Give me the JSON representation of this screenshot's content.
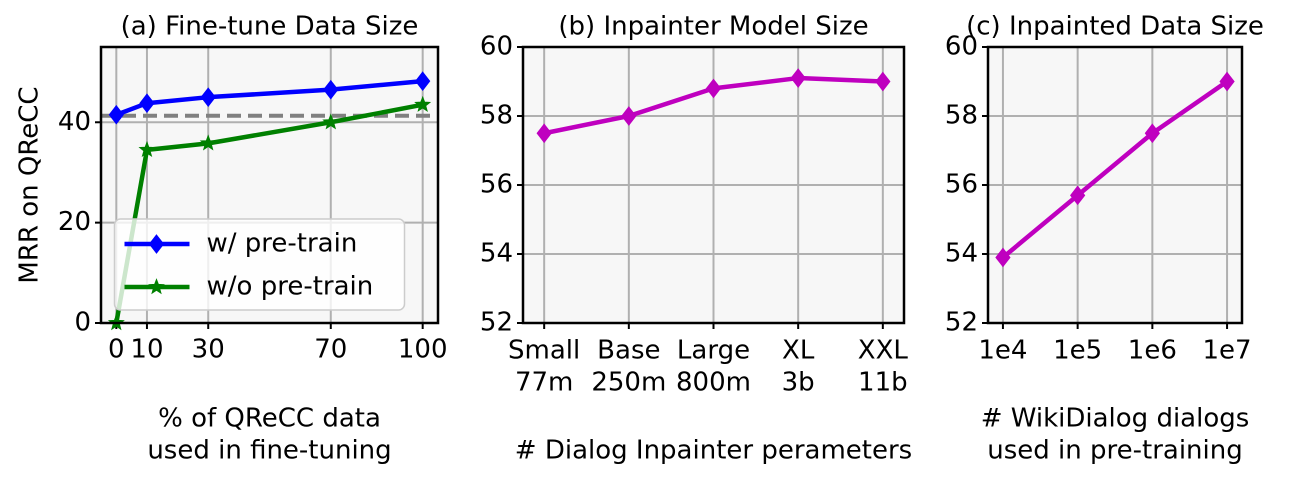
{
  "chart_data": [
    {
      "type": "line",
      "title": "(a) Fine-tune Data Size",
      "ylabel": "MRR on QReCC",
      "xlabel": [
        "% of QReCC data",
        "used in fine-tuning"
      ],
      "x": [
        0,
        10,
        30,
        70,
        100
      ],
      "series": [
        {
          "name": "w/ pre-train",
          "color": "#0000ff",
          "marker": "diamond",
          "values": [
            41.5,
            43.8,
            45.0,
            46.5,
            48.2
          ]
        },
        {
          "name": "w/o pre-train",
          "color": "#008000",
          "marker": "star",
          "values": [
            0,
            34.5,
            35.8,
            40.0,
            43.5
          ]
        }
      ],
      "reference_line": 41.3,
      "reference_color": "#808080",
      "xlim": [
        -5,
        105
      ],
      "xticks": [
        0,
        10,
        30,
        70,
        100
      ],
      "ylim": [
        0,
        55
      ],
      "yticks": [
        0,
        20,
        40
      ],
      "grid": true,
      "legend": "lower center"
    },
    {
      "type": "line",
      "title": "(b) Inpainter Model Size",
      "xlabel": [
        "# Dialog Inpainter perameters"
      ],
      "categories": [
        [
          "Small",
          "77m"
        ],
        [
          "Base",
          "250m"
        ],
        [
          "Large",
          "800m"
        ],
        [
          "XL",
          "3b"
        ],
        [
          "XXL",
          "11b"
        ]
      ],
      "series": [
        {
          "color": "#bf00bf",
          "marker": "diamond",
          "values": [
            57.5,
            58.0,
            58.8,
            59.1,
            59.0
          ]
        }
      ],
      "ylim": [
        52,
        60
      ],
      "yticks": [
        52,
        54,
        56,
        58,
        60
      ],
      "grid": true
    },
    {
      "type": "line",
      "title": "(c) Inpainted Data Size",
      "xlabel": [
        "# WikiDialog dialogs",
        "used in pre-training"
      ],
      "categories": [
        [
          "1e4"
        ],
        [
          "1e5"
        ],
        [
          "1e6"
        ],
        [
          "1e7"
        ]
      ],
      "series": [
        {
          "color": "#bf00bf",
          "marker": "diamond",
          "values": [
            53.9,
            55.7,
            57.5,
            59.0
          ]
        }
      ],
      "ylim": [
        52,
        60
      ],
      "yticks": [
        52,
        54,
        56,
        58,
        60
      ],
      "grid": true
    }
  ]
}
